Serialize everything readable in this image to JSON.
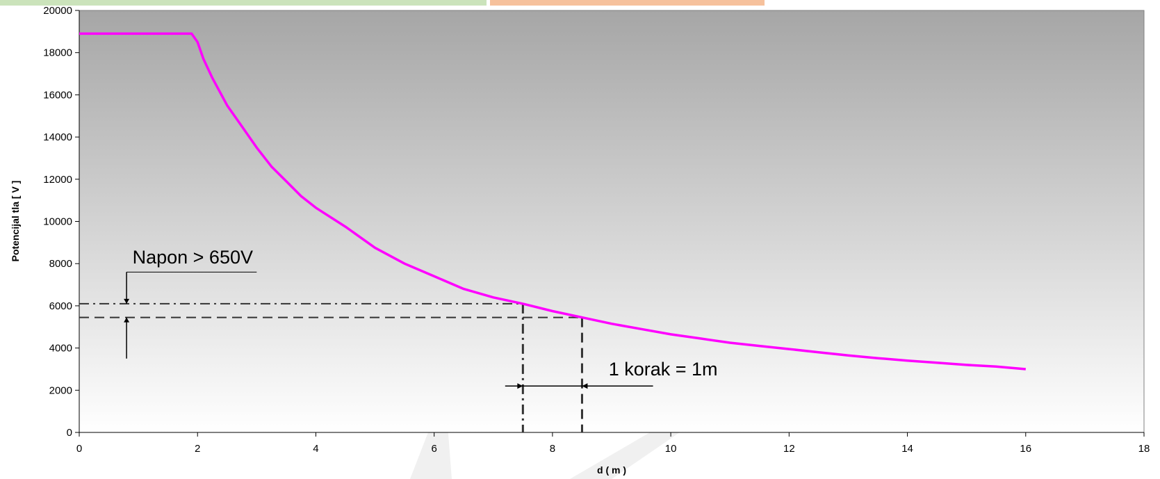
{
  "chart_data": {
    "type": "line",
    "title": "",
    "xlabel": "d ( m )",
    "ylabel": "Potencijal tla [ V ]",
    "xlim": [
      0,
      18
    ],
    "ylim": [
      0,
      20000
    ],
    "x_ticks": [
      0,
      2,
      4,
      6,
      8,
      10,
      12,
      14,
      16,
      18
    ],
    "y_ticks": [
      0,
      2000,
      4000,
      6000,
      8000,
      10000,
      12000,
      14000,
      16000,
      18000,
      20000
    ],
    "x_tick_labels": [
      "0",
      "2",
      "4",
      "6",
      "8",
      "10",
      "12",
      "14",
      "16",
      "18"
    ],
    "y_tick_labels": [
      "0",
      "2000",
      "4000",
      "6000",
      "8000",
      "10000",
      "12000",
      "14000",
      "16000",
      "18000",
      "20000"
    ],
    "grid": false,
    "series": [
      {
        "color": "#ff00ff",
        "x": [
          0,
          0.5,
          1.0,
          1.5,
          1.9,
          2.0,
          2.1,
          2.25,
          2.5,
          2.75,
          3.0,
          3.25,
          3.5,
          3.75,
          4.0,
          4.5,
          5.0,
          5.5,
          6.0,
          6.5,
          7.0,
          7.5,
          8.0,
          8.5,
          9.0,
          9.5,
          10.0,
          10.5,
          11.0,
          11.5,
          12.0,
          12.5,
          13.0,
          13.5,
          14.0,
          14.5,
          15.0,
          15.5,
          16.0
        ],
        "y": [
          18900,
          18900,
          18900,
          18900,
          18900,
          18500,
          17700,
          16800,
          15500,
          14500,
          13500,
          12600,
          11900,
          11200,
          10650,
          9750,
          8750,
          8000,
          7400,
          6800,
          6400,
          6100,
          5750,
          5450,
          5150,
          4900,
          4650,
          4450,
          4250,
          4100,
          3950,
          3800,
          3650,
          3520,
          3400,
          3300,
          3200,
          3120,
          3000
        ]
      }
    ],
    "annotations": {
      "napon_label": "Napon > 650V",
      "korak_label": "1 korak = 1m",
      "ref_levels": [
        6100,
        5450
      ],
      "ref_positions": [
        7.5,
        8.5
      ]
    }
  }
}
